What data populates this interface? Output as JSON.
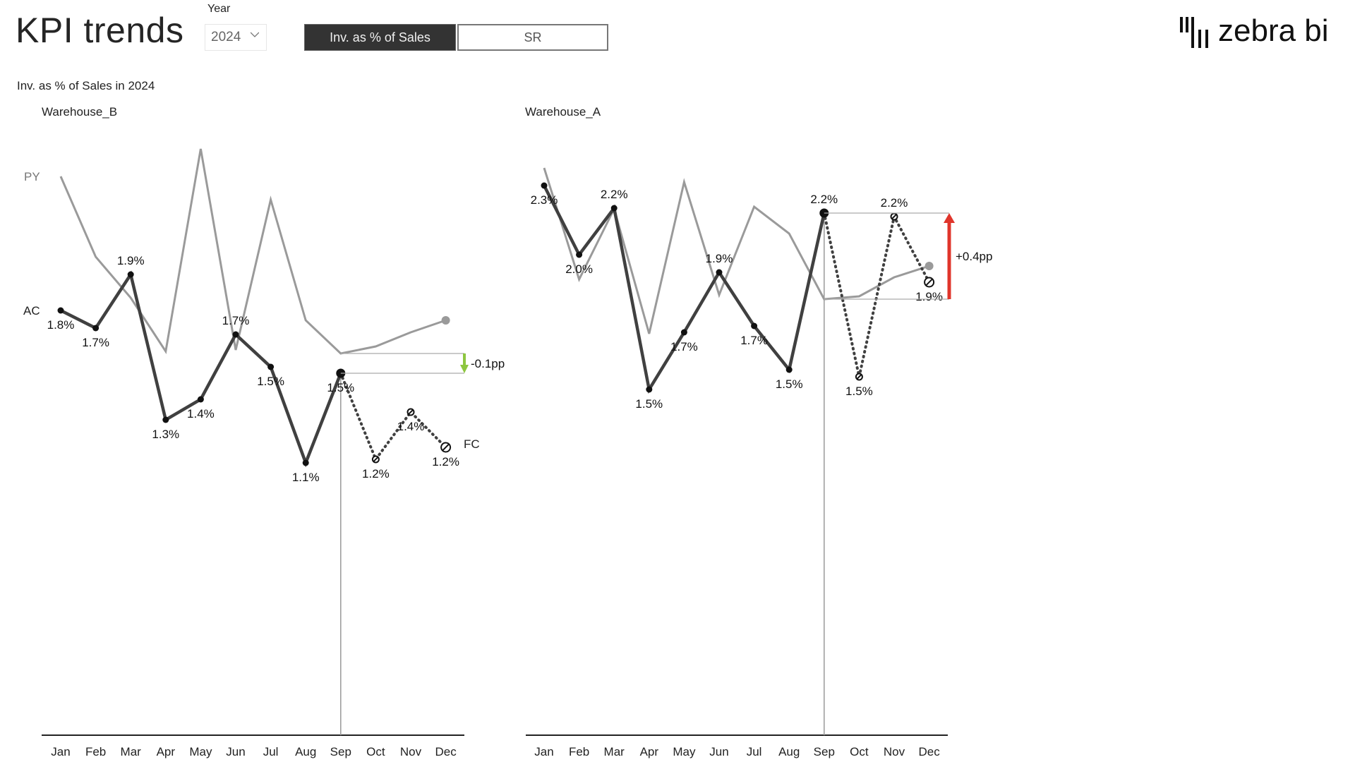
{
  "header": {
    "title": "KPI trends",
    "year_filter": {
      "label": "Year",
      "selected": "2024"
    },
    "kpi_buttons": [
      {
        "label": "Inv. as % of Sales",
        "active": true
      },
      {
        "label": "SR",
        "active": false
      }
    ],
    "logo_text": "zebra bi"
  },
  "chart_title": "Inv. as % of Sales in 2024",
  "legend": {
    "py": "PY",
    "ac": "AC",
    "fc": "FC"
  },
  "colors": {
    "ac": "#404040",
    "py": "#9a9a9a",
    "positive": "#e0352b",
    "negative_good": "#8dc63f"
  },
  "chart_data": [
    {
      "type": "line",
      "title": "Warehouse_B",
      "categories": [
        "Jan",
        "Feb",
        "Mar",
        "Apr",
        "May",
        "Jun",
        "Jul",
        "Aug",
        "Sep",
        "Oct",
        "Nov",
        "Dec"
      ],
      "series": [
        {
          "name": "AC",
          "values": [
            1.8,
            1.7,
            1.9,
            1.3,
            1.4,
            1.7,
            1.5,
            1.1,
            1.5,
            null,
            null,
            null
          ]
        },
        {
          "name": "FC",
          "values": [
            null,
            null,
            null,
            null,
            null,
            null,
            null,
            null,
            1.5,
            1.2,
            1.4,
            1.2
          ]
        },
        {
          "name": "PY",
          "values": [
            2.4,
            2.0,
            1.8,
            1.6,
            2.5,
            1.6,
            2.3,
            1.8,
            1.6,
            1.6,
            1.7,
            1.7
          ]
        }
      ],
      "labels": [
        "1.8%",
        "1.7%",
        "1.9%",
        "1.3%",
        "1.4%",
        "1.7%",
        "1.5%",
        "1.1%",
        "1.5%",
        "1.2%",
        "1.4%",
        "1.2%"
      ],
      "variance_label": "-0.1pp",
      "unit": "%"
    },
    {
      "type": "line",
      "title": "Warehouse_A",
      "categories": [
        "Jan",
        "Feb",
        "Mar",
        "Apr",
        "May",
        "Jun",
        "Jul",
        "Aug",
        "Sep",
        "Oct",
        "Nov",
        "Dec"
      ],
      "series": [
        {
          "name": "AC",
          "values": [
            2.3,
            2.0,
            2.2,
            1.5,
            1.7,
            1.9,
            1.7,
            1.5,
            2.2,
            null,
            null,
            null
          ]
        },
        {
          "name": "FC",
          "values": [
            null,
            null,
            null,
            null,
            null,
            null,
            null,
            null,
            2.2,
            1.5,
            2.2,
            1.9
          ]
        },
        {
          "name": "PY",
          "values": [
            2.4,
            1.9,
            2.2,
            1.7,
            2.3,
            1.8,
            2.2,
            2.1,
            1.8,
            1.8,
            1.9,
            1.9
          ]
        }
      ],
      "labels": [
        "2.3%",
        "2.0%",
        "2.2%",
        "1.5%",
        "1.7%",
        "1.9%",
        "1.7%",
        "1.5%",
        "2.2%",
        "1.5%",
        "2.2%",
        "1.9%"
      ],
      "variance_label": "+0.4pp",
      "unit": "%"
    }
  ]
}
